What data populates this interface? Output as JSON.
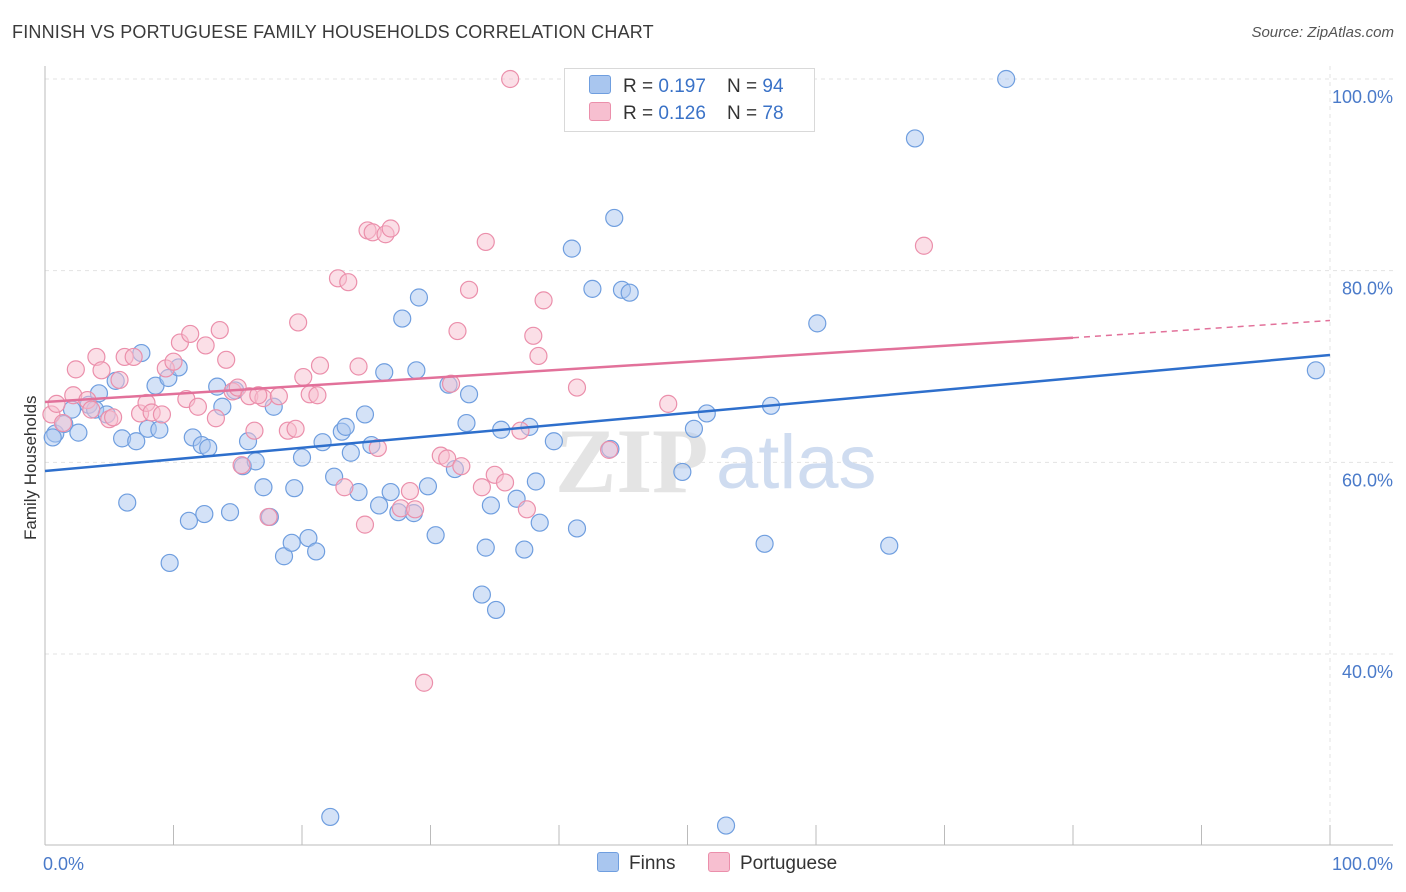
{
  "title": "FINNISH VS PORTUGUESE FAMILY HOUSEHOLDS CORRELATION CHART",
  "source": "Source: ZipAtlas.com",
  "watermark": {
    "zip": "ZIP",
    "atlas": "atlas"
  },
  "legend": {
    "finns": {
      "r_label": "R = ",
      "r_value": "0.197",
      "n_label": "N = ",
      "n_value": "94"
    },
    "portuguese": {
      "r_label": "R = ",
      "r_value": "0.126",
      "n_label": "N = ",
      "n_value": "78"
    }
  },
  "bottom_legend": {
    "finns": "Finns",
    "portuguese": "Portuguese"
  },
  "colors": {
    "finns_fill": "#a9c6ef",
    "finns_stroke": "#6f9edf",
    "finns_line": "#2e6fcc",
    "portuguese_fill": "#f7bfd0",
    "portuguese_stroke": "#eb8fab",
    "portuguese_line": "#e2719a",
    "tick_text": "#4a7ac9",
    "grid": "#e3e3e3"
  },
  "chart_data": {
    "type": "scatter",
    "title": "FINNISH VS PORTUGUESE FAMILY HOUSEHOLDS CORRELATION CHART",
    "xlabel": "",
    "ylabel": "Family Households",
    "xlim": [
      0,
      100
    ],
    "ylim": [
      20,
      103
    ],
    "x_tick_labels": [
      "0.0%",
      "100.0%"
    ],
    "y_ticks": [
      40,
      60,
      80,
      100
    ],
    "y_tick_labels": [
      "40.0%",
      "60.0%",
      "80.0%",
      "100.0%"
    ],
    "grid": true,
    "legend_position": "top-center",
    "series": [
      {
        "name": "Finns",
        "r": 0.197,
        "n": 94,
        "trend": {
          "x0": 0,
          "y0": 59.1,
          "x1": 100,
          "y1": 71.2
        },
        "points": [
          [
            0.8,
            63.0
          ],
          [
            1.5,
            64.0
          ],
          [
            2.1,
            65.5
          ],
          [
            2.6,
            63.1
          ],
          [
            3.4,
            66.0
          ],
          [
            3.9,
            65.5
          ],
          [
            4.2,
            67.2
          ],
          [
            4.8,
            65.0
          ],
          [
            5.5,
            68.5
          ],
          [
            6.0,
            62.5
          ],
          [
            6.4,
            55.8
          ],
          [
            7.1,
            62.2
          ],
          [
            7.5,
            71.4
          ],
          [
            8.0,
            63.5
          ],
          [
            8.6,
            68.0
          ],
          [
            8.9,
            63.4
          ],
          [
            9.6,
            68.8
          ],
          [
            9.7,
            49.5
          ],
          [
            10.4,
            69.9
          ],
          [
            11.2,
            53.9
          ],
          [
            11.5,
            62.6
          ],
          [
            12.2,
            61.8
          ],
          [
            12.4,
            54.6
          ],
          [
            12.7,
            61.5
          ],
          [
            13.4,
            67.9
          ],
          [
            13.8,
            65.8
          ],
          [
            14.4,
            54.8
          ],
          [
            14.8,
            67.5
          ],
          [
            15.4,
            59.6
          ],
          [
            15.8,
            62.2
          ],
          [
            16.4,
            60.1
          ],
          [
            17.0,
            57.4
          ],
          [
            17.5,
            54.3
          ],
          [
            17.8,
            65.8
          ],
          [
            18.6,
            50.2
          ],
          [
            19.2,
            51.6
          ],
          [
            19.4,
            57.3
          ],
          [
            20.0,
            60.5
          ],
          [
            20.5,
            52.1
          ],
          [
            21.1,
            50.7
          ],
          [
            21.6,
            62.1
          ],
          [
            22.5,
            58.5
          ],
          [
            23.1,
            63.2
          ],
          [
            23.4,
            63.7
          ],
          [
            23.8,
            61.0
          ],
          [
            24.4,
            56.9
          ],
          [
            24.9,
            65.0
          ],
          [
            25.4,
            61.8
          ],
          [
            26.0,
            55.5
          ],
          [
            26.4,
            69.4
          ],
          [
            26.9,
            56.9
          ],
          [
            27.5,
            54.8
          ],
          [
            27.8,
            75.0
          ],
          [
            28.7,
            54.7
          ],
          [
            28.9,
            69.6
          ],
          [
            29.1,
            77.2
          ],
          [
            29.8,
            57.5
          ],
          [
            30.4,
            52.4
          ],
          [
            31.4,
            68.1
          ],
          [
            31.9,
            59.3
          ],
          [
            32.8,
            64.1
          ],
          [
            33.0,
            67.1
          ],
          [
            34.0,
            46.2
          ],
          [
            34.3,
            51.1
          ],
          [
            34.7,
            55.5
          ],
          [
            35.1,
            44.6
          ],
          [
            35.5,
            63.4
          ],
          [
            36.7,
            56.2
          ],
          [
            37.3,
            50.9
          ],
          [
            37.7,
            63.7
          ],
          [
            38.2,
            58.0
          ],
          [
            38.5,
            53.7
          ],
          [
            39.6,
            62.2
          ],
          [
            41.0,
            82.3
          ],
          [
            41.4,
            53.1
          ],
          [
            42.6,
            78.1
          ],
          [
            44.0,
            61.4
          ],
          [
            44.3,
            85.5
          ],
          [
            44.9,
            78.0
          ],
          [
            45.5,
            77.7
          ],
          [
            49.6,
            59.0
          ],
          [
            50.5,
            63.5
          ],
          [
            51.5,
            65.1
          ],
          [
            53.0,
            22.1
          ],
          [
            56.0,
            51.5
          ],
          [
            56.5,
            65.9
          ],
          [
            58.5,
            100.0
          ],
          [
            60.1,
            74.5
          ],
          [
            65.7,
            51.3
          ],
          [
            67.7,
            93.8
          ],
          [
            74.8,
            100.0
          ],
          [
            22.2,
            23.0
          ],
          [
            98.9,
            69.6
          ],
          [
            0.6,
            62.6
          ]
        ]
      },
      {
        "name": "Portuguese",
        "r": 0.126,
        "n": 78,
        "trend": {
          "x0": 0,
          "y0": 66.3,
          "x1": 80,
          "y1": 73.0,
          "dash_to_x": 100,
          "dash_to_y": 74.8
        },
        "points": [
          [
            0.5,
            65.0
          ],
          [
            0.9,
            66.1
          ],
          [
            1.4,
            64.1
          ],
          [
            2.2,
            67.0
          ],
          [
            2.4,
            69.7
          ],
          [
            3.3,
            66.5
          ],
          [
            3.6,
            65.5
          ],
          [
            4.0,
            71.0
          ],
          [
            4.4,
            69.6
          ],
          [
            5.0,
            64.5
          ],
          [
            5.3,
            64.7
          ],
          [
            5.8,
            68.6
          ],
          [
            6.2,
            71.0
          ],
          [
            6.9,
            71.0
          ],
          [
            7.4,
            65.1
          ],
          [
            7.9,
            66.2
          ],
          [
            8.3,
            65.2
          ],
          [
            9.1,
            65.0
          ],
          [
            9.4,
            69.8
          ],
          [
            10.0,
            70.5
          ],
          [
            10.5,
            72.5
          ],
          [
            11.0,
            66.6
          ],
          [
            11.3,
            73.4
          ],
          [
            11.9,
            65.8
          ],
          [
            12.5,
            72.2
          ],
          [
            13.3,
            64.6
          ],
          [
            13.6,
            73.8
          ],
          [
            14.1,
            70.7
          ],
          [
            14.6,
            67.4
          ],
          [
            15.0,
            67.8
          ],
          [
            15.3,
            59.7
          ],
          [
            15.9,
            66.9
          ],
          [
            16.3,
            63.3
          ],
          [
            17.0,
            66.7
          ],
          [
            17.4,
            54.3
          ],
          [
            18.2,
            66.9
          ],
          [
            18.9,
            63.3
          ],
          [
            19.5,
            63.5
          ],
          [
            19.7,
            74.6
          ],
          [
            20.1,
            68.9
          ],
          [
            20.6,
            67.1
          ],
          [
            21.4,
            70.1
          ],
          [
            22.8,
            79.2
          ],
          [
            23.3,
            57.4
          ],
          [
            23.6,
            78.8
          ],
          [
            24.4,
            70.0
          ],
          [
            24.9,
            53.5
          ],
          [
            25.1,
            84.2
          ],
          [
            25.5,
            84.0
          ],
          [
            25.9,
            61.5
          ],
          [
            26.5,
            83.8
          ],
          [
            26.9,
            84.4
          ],
          [
            27.7,
            55.2
          ],
          [
            28.4,
            57.0
          ],
          [
            28.8,
            55.1
          ],
          [
            29.5,
            37.0
          ],
          [
            30.8,
            60.7
          ],
          [
            31.3,
            60.4
          ],
          [
            31.6,
            68.2
          ],
          [
            32.1,
            73.7
          ],
          [
            32.4,
            59.6
          ],
          [
            33.0,
            78.0
          ],
          [
            34.0,
            57.4
          ],
          [
            34.3,
            83.0
          ],
          [
            35.0,
            58.7
          ],
          [
            35.8,
            57.9
          ],
          [
            36.2,
            100.0
          ],
          [
            37.0,
            63.3
          ],
          [
            37.5,
            55.1
          ],
          [
            38.0,
            73.2
          ],
          [
            38.4,
            71.1
          ],
          [
            38.8,
            76.9
          ],
          [
            41.4,
            67.8
          ],
          [
            43.9,
            61.3
          ],
          [
            48.5,
            66.1
          ],
          [
            68.4,
            82.6
          ],
          [
            21.2,
            67.0
          ],
          [
            16.6,
            67.0
          ]
        ]
      }
    ]
  }
}
